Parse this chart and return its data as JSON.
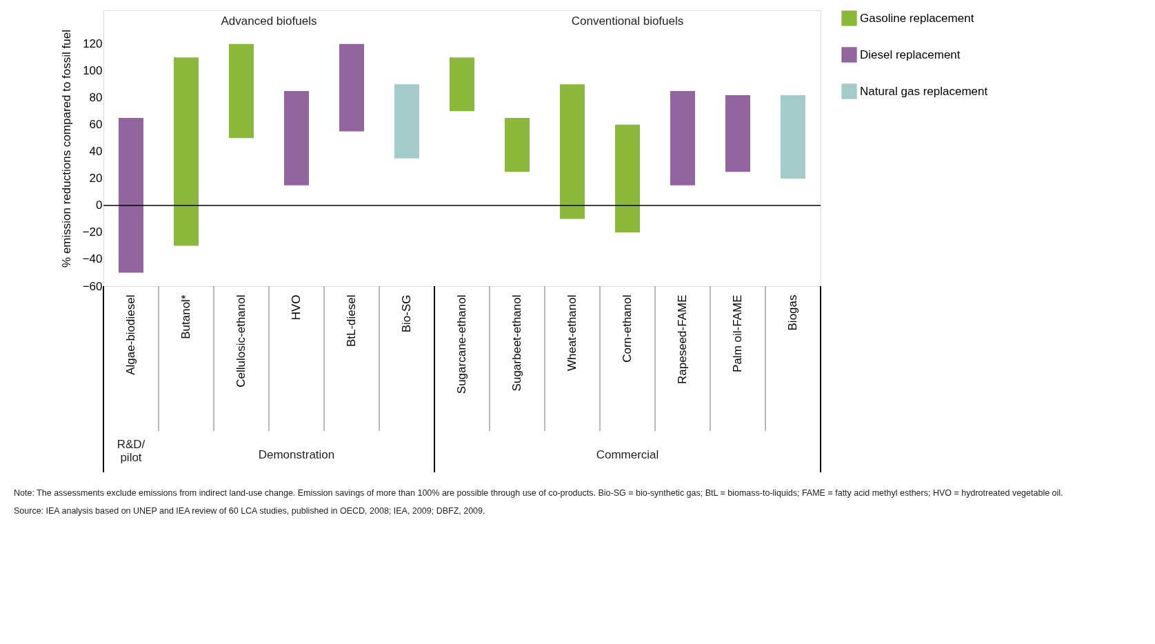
{
  "chart_data": {
    "type": "bar",
    "ylabel": "% emission reductions compared to fossil fuel",
    "categories": [
      "Algae-biodiesel",
      "Butanol*",
      "Cellulosic-ethanol",
      "HVO",
      "BtL-diesel",
      "Bio-SG",
      "Sugarcane-ethanol",
      "Sugarbeet-ethanol",
      "Wheat-ethanol",
      "Corn-ethanol",
      "Rapeseed-FAME",
      "Palm oil-FAME",
      "Biogas"
    ],
    "series": [
      {
        "name": "Gasoline replacement",
        "color": "#8cb83c",
        "base": [
          null,
          -30,
          50,
          null,
          null,
          null,
          70,
          25,
          -10,
          -20,
          null,
          null,
          null
        ],
        "values": [
          null,
          140,
          70,
          null,
          null,
          null,
          40,
          40,
          100,
          80,
          null,
          null,
          null
        ]
      },
      {
        "name": "Diesel replacement",
        "color": "#93659f",
        "base": [
          -50,
          null,
          null,
          15,
          55,
          null,
          null,
          null,
          null,
          null,
          15,
          25,
          null
        ],
        "values": [
          115,
          null,
          null,
          70,
          65,
          null,
          null,
          null,
          null,
          null,
          70,
          57,
          null
        ]
      },
      {
        "name": "Natural gas replacement",
        "color": "#a5cbc9",
        "base": [
          null,
          null,
          null,
          null,
          null,
          35,
          null,
          null,
          null,
          null,
          null,
          null,
          20
        ],
        "values": [
          null,
          null,
          null,
          null,
          null,
          55,
          null,
          null,
          null,
          null,
          null,
          null,
          62
        ]
      }
    ],
    "ylim": [
      -60,
      145
    ],
    "yticks": [
      -60,
      -40,
      -20,
      0,
      20,
      40,
      60,
      80,
      100,
      120
    ],
    "ref_lines": [
      {
        "axis": "y",
        "value": 0,
        "color": "#000000"
      }
    ],
    "grid": false,
    "legend": "right",
    "annotations": [
      "Advanced biofuels",
      "Conventional biofuels",
      "R&D/ pilot",
      "Demonstration",
      "Commercial",
      "Note: The assessments exclude emissions from indirect land-use change. Emission savings of more than 100% are possible through use of co-products. Bio-SG = bio-synthetic gas; BtL = biomass-to-liquids; FAME = fatty acid methyl esthers; HVO = hydrotreated vegetable oil.",
      "Source: IEA analysis based on UNEP and IEA review of 60 LCA studies, published in OECD, 2008; IEA, 2009; DBFZ, 2009."
    ]
  }
}
